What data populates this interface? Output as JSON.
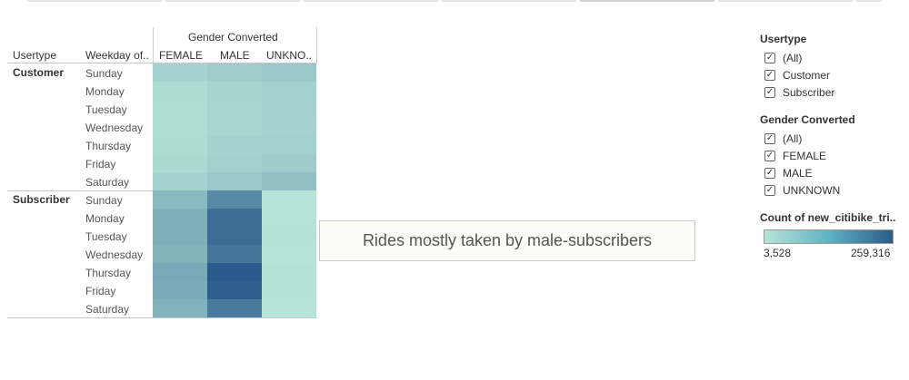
{
  "chart_data": {
    "type": "heatmap",
    "header": "Gender Converted",
    "row_headers": [
      "Usertype",
      "Weekday of.."
    ],
    "columns": [
      "FEMALE",
      "MALE",
      "UNKNO.."
    ],
    "groups": [
      {
        "name": "Customer",
        "rows": [
          {
            "day": "Sunday",
            "values": [
              13000,
              18000,
              23000
            ]
          },
          {
            "day": "Monday",
            "values": [
              8000,
              12000,
              15000
            ]
          },
          {
            "day": "Tuesday",
            "values": [
              7000,
              11000,
              14000
            ]
          },
          {
            "day": "Wednesday",
            "values": [
              7000,
              11000,
              13000
            ]
          },
          {
            "day": "Thursday",
            "values": [
              8000,
              13000,
              15000
            ]
          },
          {
            "day": "Friday",
            "values": [
              9000,
              15000,
              19000
            ]
          },
          {
            "day": "Saturday",
            "values": [
              15000,
              23000,
              34000
            ]
          }
        ]
      },
      {
        "name": "Subscriber",
        "rows": [
          {
            "day": "Sunday",
            "values": [
              40000,
              130000,
              3528
            ]
          },
          {
            "day": "Monday",
            "values": [
              54000,
              200000,
              4000
            ]
          },
          {
            "day": "Tuesday",
            "values": [
              56000,
              205000,
              4500
            ]
          },
          {
            "day": "Wednesday",
            "values": [
              48000,
              180000,
              4000
            ]
          },
          {
            "day": "Thursday",
            "values": [
              66000,
              259316,
              5000
            ]
          },
          {
            "day": "Friday",
            "values": [
              62000,
              245000,
              4500
            ]
          },
          {
            "day": "Saturday",
            "values": [
              50000,
              165000,
              3800
            ]
          }
        ]
      }
    ],
    "color_scale": {
      "min": 3528,
      "max": 259316,
      "min_color": "#b7e4d8",
      "max_color": "#2b5b8a"
    }
  },
  "annotation": "Rides mostly taken by male-subscribers",
  "filters": [
    {
      "title": "Usertype",
      "items": [
        "(All)",
        "Customer",
        "Subscriber"
      ]
    },
    {
      "title": "Gender Converted",
      "items": [
        "(All)",
        "FEMALE",
        "MALE",
        "UNKNOWN"
      ]
    }
  ],
  "color_legend": {
    "title": "Count of new_citibike_tri..",
    "min_label": "3,528",
    "max_label": "259,316"
  }
}
